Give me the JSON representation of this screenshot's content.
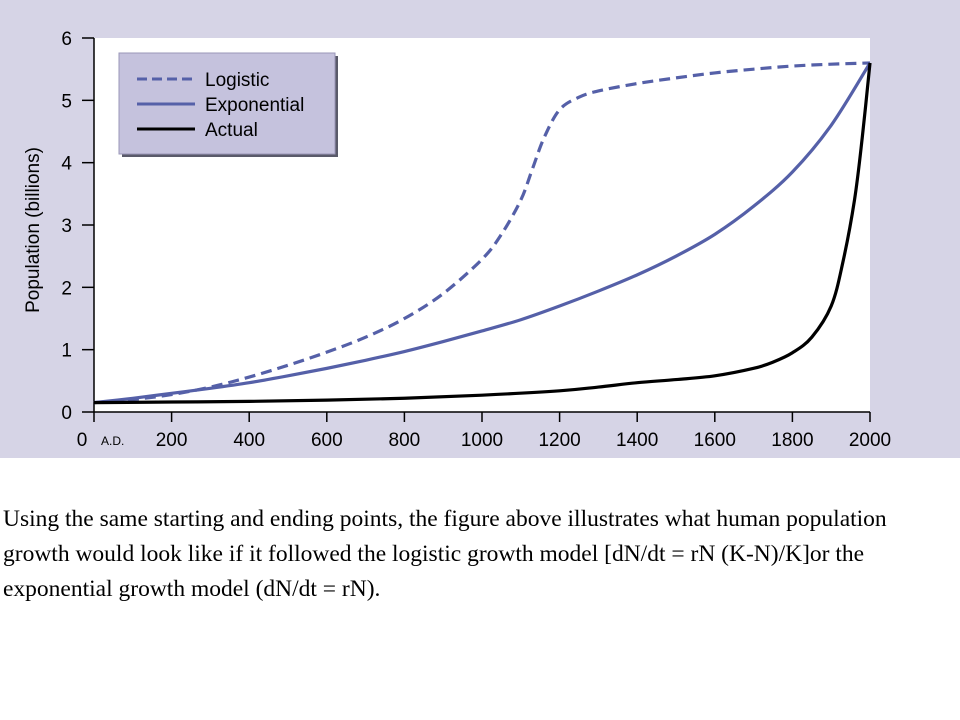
{
  "caption": "Using the same starting and ending points, the figure above illustrates what human population growth would look like if it followed the logistic growth model [dN/dt = rN (K-N)/K]or the exponential growth model (dN/dt = rN).",
  "chart_data": {
    "type": "line",
    "title": "",
    "xlabel": "",
    "ylabel": "Population (billions)",
    "x_tick_labels": [
      "0",
      "200",
      "400",
      "600",
      "800",
      "1000",
      "1200",
      "1400",
      "1600",
      "1800",
      "2000"
    ],
    "x_origin_note": "A.D.",
    "y_tick_labels": [
      "0",
      "1",
      "2",
      "3",
      "4",
      "5",
      "6"
    ],
    "xlim": [
      0,
      2000
    ],
    "ylim": [
      0,
      6
    ],
    "grid": false,
    "legend_position": "top-left",
    "colors": {
      "panel": "#d6d4e6",
      "plot_area": "#ffffff",
      "legend_bg": "#c5c2dd",
      "model": "#5560a8",
      "actual": "#000000"
    },
    "series": [
      {
        "name": "Logistic",
        "style": "dashed",
        "color": "#5560a8",
        "x": [
          0,
          100,
          200,
          300,
          400,
          500,
          600,
          700,
          800,
          900,
          1000,
          1050,
          1100,
          1130,
          1160,
          1200,
          1250,
          1300,
          1400,
          1500,
          1600,
          1700,
          1800,
          1900,
          2000
        ],
        "y": [
          0.15,
          0.2,
          0.28,
          0.4,
          0.56,
          0.75,
          0.96,
          1.2,
          1.5,
          1.9,
          2.45,
          2.85,
          3.4,
          3.9,
          4.4,
          4.85,
          5.05,
          5.15,
          5.27,
          5.36,
          5.44,
          5.5,
          5.55,
          5.58,
          5.6
        ]
      },
      {
        "name": "Exponential",
        "style": "solid",
        "color": "#5560a8",
        "x": [
          0,
          100,
          200,
          300,
          400,
          500,
          600,
          700,
          800,
          900,
          1000,
          1100,
          1200,
          1300,
          1400,
          1500,
          1600,
          1700,
          1800,
          1900,
          2000
        ],
        "y": [
          0.15,
          0.22,
          0.3,
          0.38,
          0.47,
          0.58,
          0.7,
          0.83,
          0.97,
          1.13,
          1.3,
          1.48,
          1.7,
          1.94,
          2.2,
          2.5,
          2.85,
          3.3,
          3.85,
          4.6,
          5.6
        ]
      },
      {
        "name": "Actual",
        "style": "solid",
        "color": "#000000",
        "x": [
          0,
          200,
          400,
          600,
          800,
          1000,
          1200,
          1300,
          1400,
          1500,
          1600,
          1700,
          1750,
          1800,
          1850,
          1900,
          1930,
          1960,
          1980,
          2000
        ],
        "y": [
          0.15,
          0.16,
          0.17,
          0.19,
          0.22,
          0.27,
          0.34,
          0.4,
          0.47,
          0.52,
          0.58,
          0.7,
          0.8,
          0.95,
          1.2,
          1.7,
          2.4,
          3.4,
          4.4,
          5.6
        ]
      }
    ]
  }
}
